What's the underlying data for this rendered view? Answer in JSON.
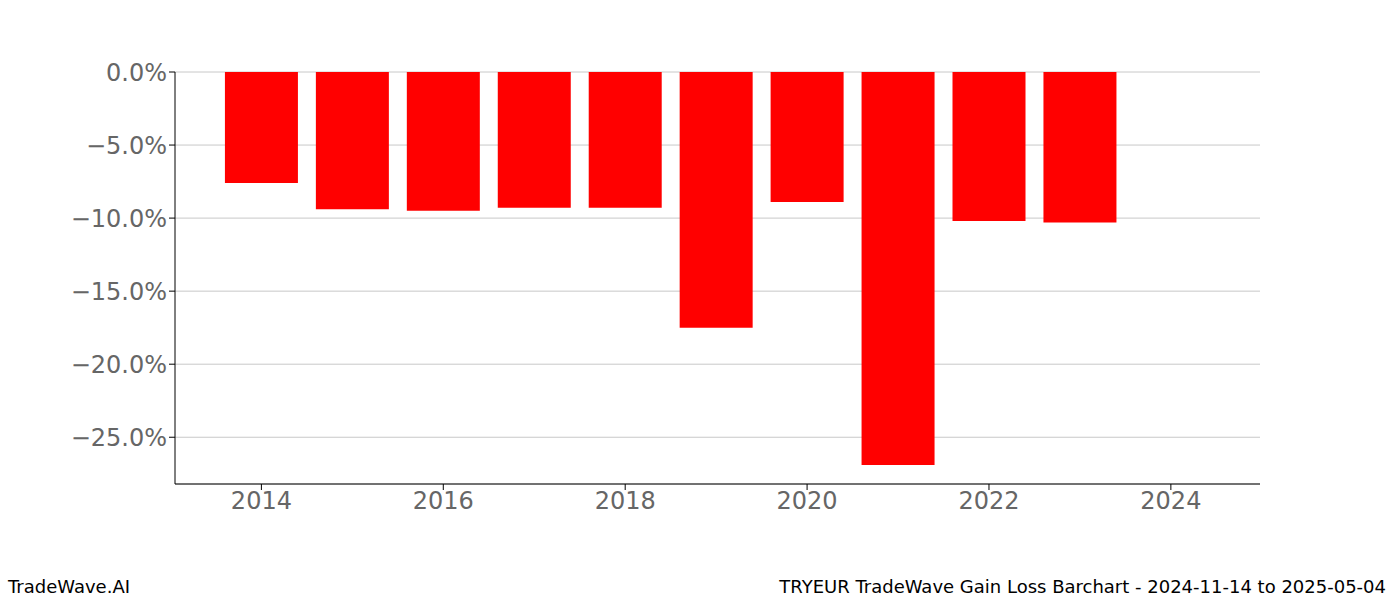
{
  "chart_data": {
    "type": "bar",
    "annotations": [
      "TradeWave.AI",
      "TRYEUR TradeWave Gain Loss Barchart - 2024-11-14 to 2025-05-04"
    ],
    "x": [
      2014,
      2015,
      2016,
      2017,
      2018,
      2019,
      2020,
      2021,
      2022,
      2023
    ],
    "values": [
      -7.6,
      -9.4,
      -9.5,
      -9.3,
      -9.3,
      -17.5,
      -8.9,
      -26.9,
      -10.2,
      -10.3
    ],
    "color": "#ff0000",
    "xlim": [
      2013.05,
      2024.98
    ],
    "xticks": [
      2014,
      2016,
      2018,
      2020,
      2022,
      2024
    ],
    "ylim": [
      -28.2,
      0
    ],
    "yticks": [
      {
        "value": 0,
        "label": "0.0%"
      },
      {
        "value": -5,
        "label": "−5.0%"
      },
      {
        "value": -10,
        "label": "−10.0%"
      },
      {
        "value": -15,
        "label": "−15.0%"
      },
      {
        "value": -20,
        "label": "−20.0%"
      },
      {
        "value": -25,
        "label": "−25.0%"
      }
    ],
    "grid": true
  }
}
